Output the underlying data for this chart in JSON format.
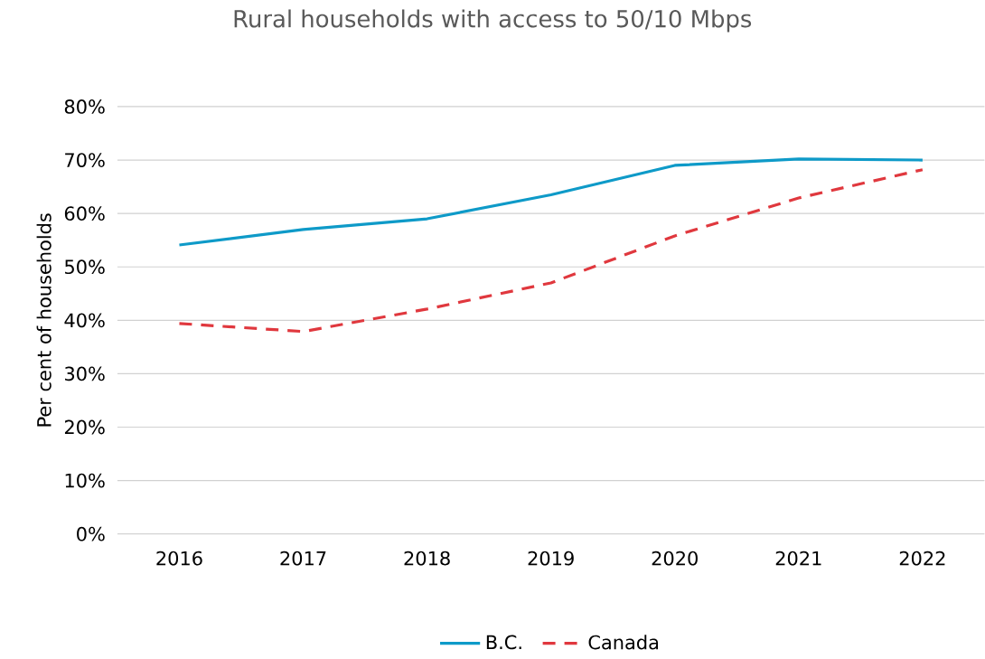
{
  "chart_data": {
    "type": "line",
    "title": "Rural households with access to 50/10 Mbps",
    "ylabel": "Per cent of households",
    "categories": [
      "2016",
      "2017",
      "2018",
      "2019",
      "2020",
      "2021",
      "2022"
    ],
    "series": [
      {
        "name": "B.C.",
        "color": "#0e9ac8",
        "line_style": "solid",
        "values": [
          54.1,
          57.0,
          59.0,
          63.5,
          69.0,
          70.2,
          70.0
        ]
      },
      {
        "name": "Canada",
        "color": "#e0383e",
        "line_style": "dashed",
        "values": [
          39.4,
          37.9,
          42.1,
          47.0,
          55.8,
          62.9,
          68.2
        ]
      }
    ],
    "ylim": [
      0,
      80
    ],
    "yticks": [
      {
        "value": 0,
        "label": "0%"
      },
      {
        "value": 10,
        "label": "10%"
      },
      {
        "value": 20,
        "label": "20%"
      },
      {
        "value": 30,
        "label": "30%"
      },
      {
        "value": 40,
        "label": "40%"
      },
      {
        "value": 50,
        "label": "50%"
      },
      {
        "value": 60,
        "label": "60%"
      },
      {
        "value": 70,
        "label": "70%"
      },
      {
        "value": 80,
        "label": "80%"
      }
    ],
    "grid": "y",
    "legend": "bottom",
    "marker": "none"
  }
}
